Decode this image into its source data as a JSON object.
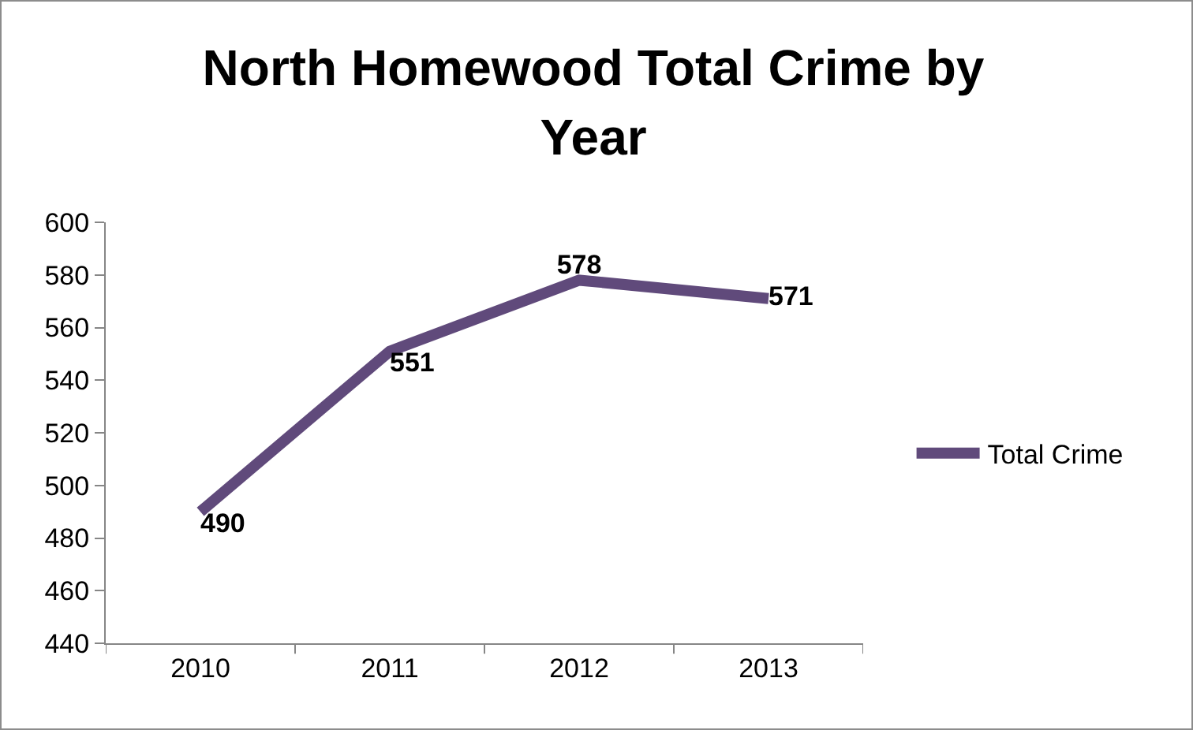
{
  "chart_data": {
    "type": "line",
    "title": "North Homewood Total Crime by Year",
    "categories": [
      "2010",
      "2011",
      "2012",
      "2013"
    ],
    "series": [
      {
        "name": "Total Crime",
        "color": "#604a7b",
        "values": [
          490,
          551,
          578,
          571
        ]
      }
    ],
    "ylim": [
      440,
      600
    ],
    "yticks": [
      440,
      460,
      480,
      500,
      520,
      540,
      560,
      580,
      600
    ],
    "grid": false,
    "legend": "right",
    "marker": "none",
    "line_style": "solid",
    "data_labels": true
  }
}
